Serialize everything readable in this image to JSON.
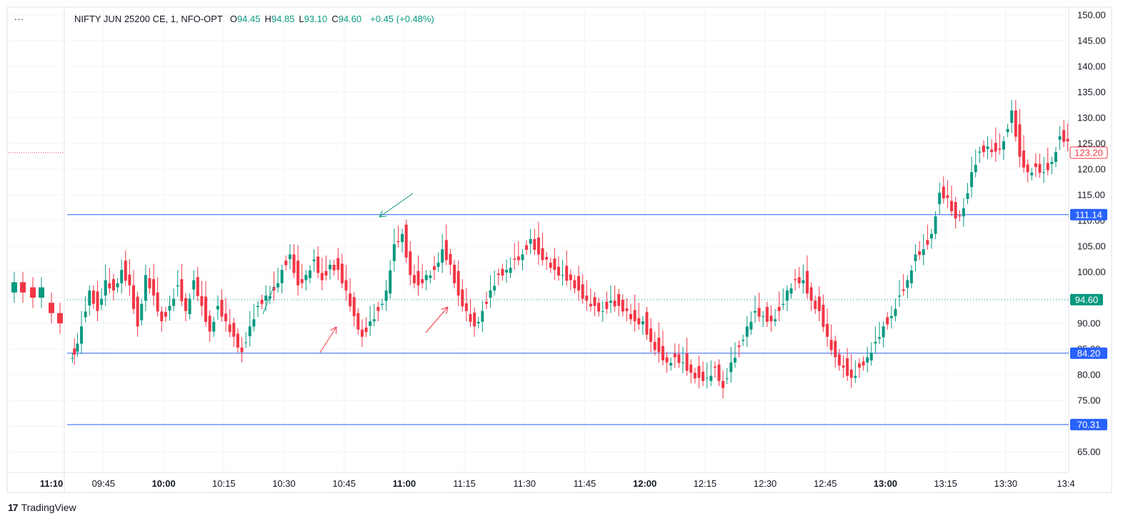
{
  "legend": {
    "symbol": "NIFTY JUN 25200 CE, 1, NFO-OPT",
    "open_label": "O",
    "open": "94.45",
    "high_label": "H",
    "high": "94.85",
    "low_label": "L",
    "low": "93.10",
    "close_label": "C",
    "close": "94.60",
    "change": "+0.45 (+0.48%)"
  },
  "menu_dots": "...",
  "brand": {
    "logo": "17",
    "name": "TradingView"
  },
  "colors": {
    "up": "#089981",
    "down": "#F23645",
    "hline": "#2962FF",
    "grid": "#F0F3FA",
    "text": "#131722",
    "price_line": "#089981",
    "highlight": "#F23645"
  },
  "chart_data": {
    "type": "candlestick",
    "ylim": [
      61,
      151.5
    ],
    "y_ticks": [
      "65.00",
      "70.00",
      "75.00",
      "80.00",
      "85.00",
      "90.00",
      "95.00",
      "100.00",
      "105.00",
      "110.00",
      "115.00",
      "120.00",
      "125.00",
      "130.00",
      "135.00",
      "140.00",
      "145.00",
      "150.00"
    ],
    "x_ticks": [
      {
        "label": "09:45",
        "bold": false
      },
      {
        "label": "10:00",
        "bold": true
      },
      {
        "label": "10:15",
        "bold": false
      },
      {
        "label": "10:30",
        "bold": false
      },
      {
        "label": "10:45",
        "bold": false
      },
      {
        "label": "11:00",
        "bold": true
      },
      {
        "label": "11:15",
        "bold": false
      },
      {
        "label": "11:30",
        "bold": false
      },
      {
        "label": "11:45",
        "bold": false
      },
      {
        "label": "12:00",
        "bold": true
      },
      {
        "label": "12:15",
        "bold": false
      },
      {
        "label": "12:30",
        "bold": false
      },
      {
        "label": "12:45",
        "bold": false
      },
      {
        "label": "13:00",
        "bold": true
      },
      {
        "label": "13:15",
        "bold": false
      },
      {
        "label": "13:30",
        "bold": false
      },
      {
        "label": "13:4",
        "bold": false
      }
    ],
    "left_pane_time": "11:10",
    "horizontal_lines": [
      {
        "price": 111.14,
        "label": "111.14"
      },
      {
        "price": 84.2,
        "label": "84.20"
      },
      {
        "price": 70.31,
        "label": "70.31"
      }
    ],
    "last_price": {
      "price": 94.6,
      "label": "94.60"
    },
    "highlight_price": {
      "price": 123.2,
      "label": "123.20"
    },
    "candles_anchor_price": [
      [
        "09:37",
        84.5
      ],
      [
        "09:38",
        90
      ],
      [
        "09:40",
        97
      ],
      [
        "09:42",
        93
      ],
      [
        "09:44",
        99
      ],
      [
        "09:46",
        97
      ],
      [
        "09:48",
        101
      ],
      [
        "09:50",
        98
      ],
      [
        "09:52",
        90
      ],
      [
        "09:54",
        100
      ],
      [
        "09:56",
        96
      ],
      [
        "09:58",
        91
      ],
      [
        "10:00",
        94
      ],
      [
        "10:02",
        98
      ],
      [
        "10:04",
        93
      ],
      [
        "10:06",
        99
      ],
      [
        "10:08",
        94
      ],
      [
        "10:10",
        89
      ],
      [
        "10:12",
        94
      ],
      [
        "10:14",
        91
      ],
      [
        "10:16",
        88
      ],
      [
        "10:18",
        85
      ],
      [
        "10:20",
        90
      ],
      [
        "10:22",
        94
      ],
      [
        "10:24",
        96
      ],
      [
        "10:26",
        97
      ],
      [
        "10:28",
        101
      ],
      [
        "10:30",
        104
      ],
      [
        "10:32",
        98
      ],
      [
        "10:34",
        100
      ],
      [
        "10:36",
        103
      ],
      [
        "10:38",
        99
      ],
      [
        "10:40",
        102
      ],
      [
        "10:42",
        101
      ],
      [
        "10:44",
        97
      ],
      [
        "10:46",
        92
      ],
      [
        "10:48",
        88
      ],
      [
        "10:50",
        91
      ],
      [
        "10:52",
        93
      ],
      [
        "10:54",
        97
      ],
      [
        "10:56",
        106
      ],
      [
        "10:58",
        108
      ],
      [
        "11:00",
        100
      ],
      [
        "11:02",
        98
      ],
      [
        "11:04",
        100
      ],
      [
        "11:06",
        101
      ],
      [
        "11:08",
        105
      ],
      [
        "11:10",
        102
      ],
      [
        "11:12",
        96
      ],
      [
        "11:14",
        93
      ],
      [
        "11:16",
        90
      ],
      [
        "11:18",
        93
      ],
      [
        "11:20",
        97
      ],
      [
        "11:22",
        100
      ],
      [
        "11:24",
        101
      ],
      [
        "11:26",
        103
      ],
      [
        "11:28",
        104
      ],
      [
        "11:30",
        107
      ],
      [
        "11:32",
        104
      ],
      [
        "11:34",
        103
      ],
      [
        "11:36",
        101
      ],
      [
        "11:38",
        100
      ],
      [
        "11:40",
        99
      ],
      [
        "11:42",
        97
      ],
      [
        "11:44",
        95
      ],
      [
        "11:46",
        94
      ],
      [
        "11:48",
        93
      ],
      [
        "11:50",
        95
      ],
      [
        "11:52",
        94
      ],
      [
        "11:54",
        93
      ],
      [
        "11:56",
        91
      ],
      [
        "11:58",
        91
      ],
      [
        "12:00",
        87
      ],
      [
        "12:02",
        85
      ],
      [
        "12:04",
        83
      ],
      [
        "12:06",
        84
      ],
      [
        "12:08",
        83
      ],
      [
        "12:10",
        81
      ],
      [
        "12:12",
        80
      ],
      [
        "12:14",
        80
      ],
      [
        "12:16",
        82
      ],
      [
        "12:18",
        78
      ],
      [
        "12:20",
        83
      ],
      [
        "12:22",
        86
      ],
      [
        "12:24",
        90
      ],
      [
        "12:26",
        93
      ],
      [
        "12:28",
        92
      ],
      [
        "12:30",
        91
      ],
      [
        "12:32",
        93
      ],
      [
        "12:34",
        97
      ],
      [
        "12:36",
        99
      ],
      [
        "12:38",
        99
      ],
      [
        "12:40",
        95
      ],
      [
        "12:42",
        93
      ],
      [
        "12:44",
        88
      ],
      [
        "12:46",
        84
      ],
      [
        "12:48",
        82
      ],
      [
        "12:50",
        80
      ],
      [
        "12:52",
        82
      ],
      [
        "12:54",
        84
      ],
      [
        "12:56",
        87
      ],
      [
        "12:58",
        90
      ],
      [
        "13:00",
        92
      ],
      [
        "13:02",
        96
      ],
      [
        "13:04",
        99
      ],
      [
        "13:06",
        104
      ],
      [
        "13:08",
        105
      ],
      [
        "13:10",
        108
      ],
      [
        "13:12",
        116
      ],
      [
        "13:14",
        115
      ],
      [
        "13:16",
        111
      ],
      [
        "13:18",
        113
      ],
      [
        "13:20",
        120
      ],
      [
        "13:22",
        124
      ],
      [
        "13:24",
        125
      ],
      [
        "13:26",
        124
      ],
      [
        "13:28",
        126
      ],
      [
        "13:30",
        132
      ],
      [
        "13:32",
        123
      ],
      [
        "13:34",
        120
      ],
      [
        "13:36",
        121
      ],
      [
        "13:38",
        120
      ],
      [
        "13:40",
        122
      ],
      [
        "13:42",
        127
      ],
      [
        "13:44",
        126
      ]
    ]
  }
}
